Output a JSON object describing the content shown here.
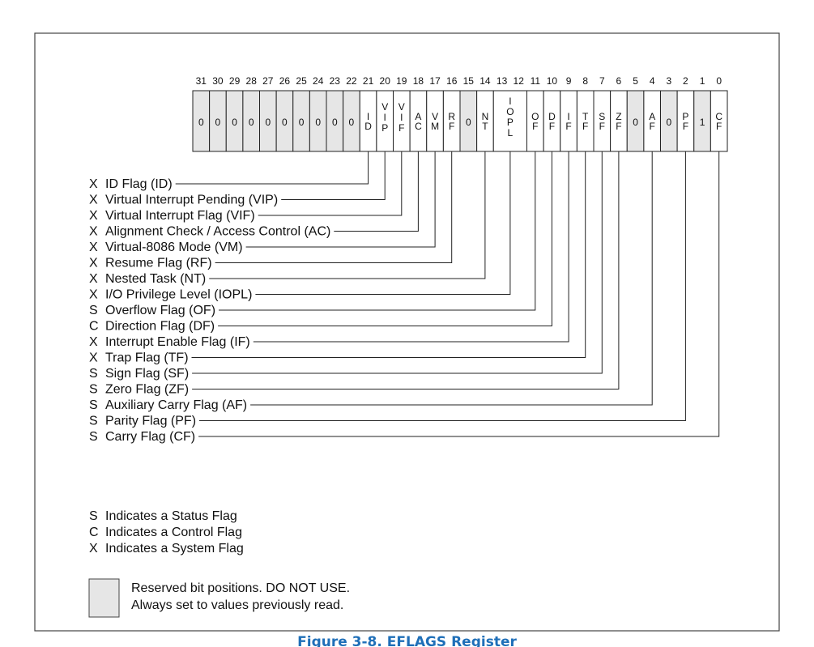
{
  "register": {
    "bits": [
      {
        "n": 31,
        "text": "0",
        "reserved": true
      },
      {
        "n": 30,
        "text": "0",
        "reserved": true
      },
      {
        "n": 29,
        "text": "0",
        "reserved": true
      },
      {
        "n": 28,
        "text": "0",
        "reserved": true
      },
      {
        "n": 27,
        "text": "0",
        "reserved": true
      },
      {
        "n": 26,
        "text": "0",
        "reserved": true
      },
      {
        "n": 25,
        "text": "0",
        "reserved": true
      },
      {
        "n": 24,
        "text": "0",
        "reserved": true
      },
      {
        "n": 23,
        "text": "0",
        "reserved": true
      },
      {
        "n": 22,
        "text": "0",
        "reserved": true
      },
      {
        "n": 21,
        "text": "ID",
        "reserved": false
      },
      {
        "n": 20,
        "text": "VIP",
        "reserved": false
      },
      {
        "n": 19,
        "text": "VIF",
        "reserved": false
      },
      {
        "n": 18,
        "text": "AC",
        "reserved": false
      },
      {
        "n": 17,
        "text": "VM",
        "reserved": false
      },
      {
        "n": 16,
        "text": "RF",
        "reserved": false
      },
      {
        "n": 15,
        "text": "0",
        "reserved": true
      },
      {
        "n": 14,
        "text": "NT",
        "reserved": false
      },
      {
        "n": 13,
        "text": "IOPL",
        "reserved": false,
        "span": 2
      },
      {
        "n": 11,
        "text": "OF",
        "reserved": false
      },
      {
        "n": 10,
        "text": "DF",
        "reserved": false
      },
      {
        "n": 9,
        "text": "IF",
        "reserved": false
      },
      {
        "n": 8,
        "text": "TF",
        "reserved": false
      },
      {
        "n": 7,
        "text": "SF",
        "reserved": false
      },
      {
        "n": 6,
        "text": "ZF",
        "reserved": false
      },
      {
        "n": 5,
        "text": "0",
        "reserved": true
      },
      {
        "n": 4,
        "text": "AF",
        "reserved": false
      },
      {
        "n": 3,
        "text": "0",
        "reserved": true
      },
      {
        "n": 2,
        "text": "PF",
        "reserved": false
      },
      {
        "n": 1,
        "text": "1",
        "reserved": true
      },
      {
        "n": 0,
        "text": "CF",
        "reserved": false
      }
    ]
  },
  "flags": [
    {
      "type": "X",
      "label": "ID Flag (ID)",
      "bit": 21
    },
    {
      "type": "X",
      "label": "Virtual Interrupt Pending (VIP)",
      "bit": 20
    },
    {
      "type": "X",
      "label": "Virtual Interrupt Flag (VIF)",
      "bit": 19
    },
    {
      "type": "X",
      "label": "Alignment Check / Access Control (AC)",
      "bit": 18
    },
    {
      "type": "X",
      "label": "Virtual-8086 Mode (VM)",
      "bit": 17
    },
    {
      "type": "X",
      "label": "Resume Flag (RF)",
      "bit": 16
    },
    {
      "type": "X",
      "label": "Nested Task (NT)",
      "bit": 14
    },
    {
      "type": "X",
      "label": "I/O Privilege Level (IOPL)",
      "bit": 13
    },
    {
      "type": "S",
      "label": "Overflow Flag (OF)",
      "bit": 11
    },
    {
      "type": "C",
      "label": "Direction Flag (DF)",
      "bit": 10
    },
    {
      "type": "X",
      "label": "Interrupt Enable Flag (IF)",
      "bit": 9
    },
    {
      "type": "X",
      "label": "Trap Flag (TF)",
      "bit": 8
    },
    {
      "type": "S",
      "label": "Sign Flag (SF)",
      "bit": 7
    },
    {
      "type": "S",
      "label": "Zero Flag (ZF)",
      "bit": 6
    },
    {
      "type": "S",
      "label": "Auxiliary Carry Flag (AF)",
      "bit": 4
    },
    {
      "type": "S",
      "label": "Parity Flag (PF)",
      "bit": 2
    },
    {
      "type": "S",
      "label": "Carry Flag (CF)",
      "bit": 0
    }
  ],
  "legend": [
    {
      "letter": "S",
      "text": "Indicates a Status Flag"
    },
    {
      "letter": "C",
      "text": "Indicates a Control Flag"
    },
    {
      "letter": "X",
      "text": "Indicates a System Flag"
    }
  ],
  "reserved_note": {
    "line1": "Reserved bit positions. DO NOT USE.",
    "line2": "Always set to values previously read."
  },
  "caption": "Figure 3-8. EFLAGS Register",
  "colors": {
    "reserved_fill": "#e6e6e6",
    "border": "#222222",
    "caption": "#1f6fb8"
  }
}
